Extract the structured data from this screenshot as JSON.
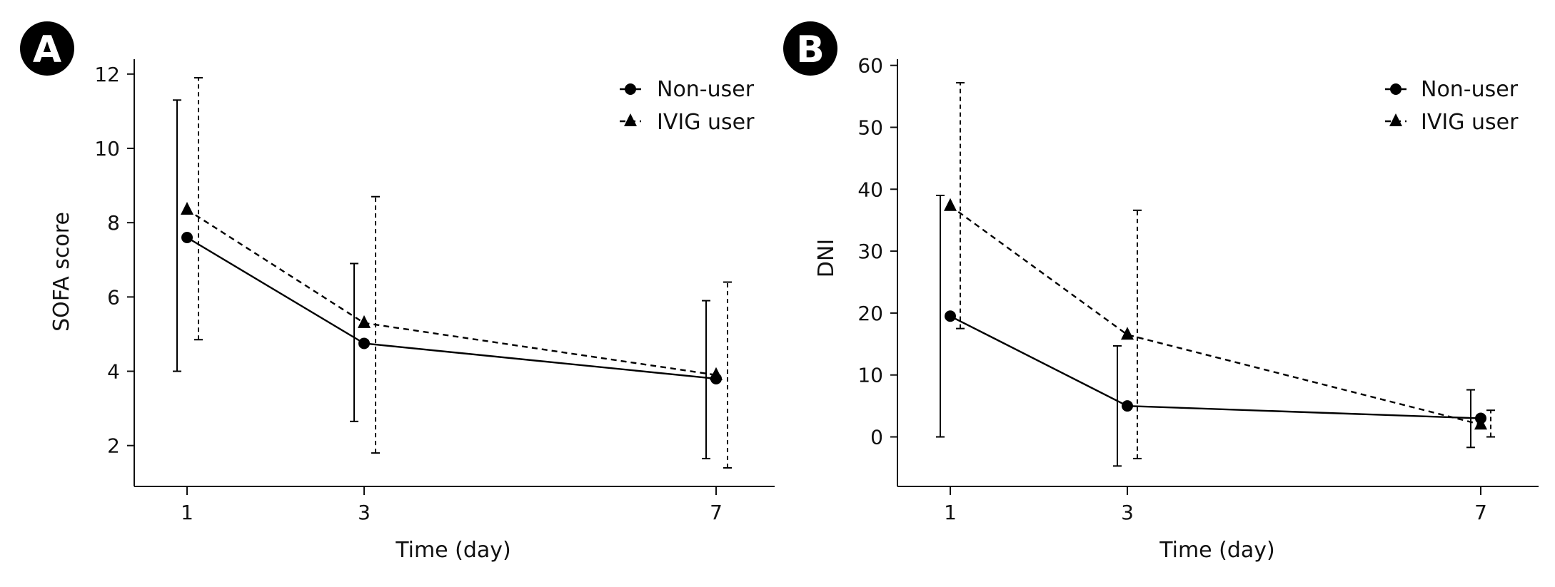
{
  "chart_data": [
    {
      "type": "line",
      "panel": "A",
      "title": "",
      "xlabel": "Time (day)",
      "ylabel": "SOFA score",
      "x": [
        1,
        3,
        7
      ],
      "xticks": [
        "1",
        "3",
        "7"
      ],
      "ylim": [
        0.9,
        12.4
      ],
      "yticks": [
        "2",
        "4",
        "6",
        "8",
        "10",
        "12"
      ],
      "legend_position": "top-right",
      "series": [
        {
          "name": "Non-user",
          "marker": "circle",
          "line": "solid",
          "values": [
            7.6,
            4.75,
            3.8
          ],
          "err_low": [
            4.0,
            2.65,
            1.65
          ],
          "err_high": [
            11.3,
            6.9,
            5.9
          ]
        },
        {
          "name": "IVIG user",
          "marker": "triangle",
          "line": "dashed",
          "values": [
            8.35,
            5.3,
            3.9
          ],
          "err_low": [
            4.85,
            1.8,
            1.4
          ],
          "err_high": [
            11.9,
            8.7,
            6.4
          ]
        }
      ]
    },
    {
      "type": "line",
      "panel": "B",
      "title": "",
      "xlabel": "Time (day)",
      "ylabel": "DNI",
      "x": [
        1,
        3,
        7
      ],
      "xticks": [
        "1",
        "3",
        "7"
      ],
      "ylim": [
        -8,
        61
      ],
      "yticks": [
        "0",
        "10",
        "20",
        "30",
        "40",
        "50",
        "60"
      ],
      "legend_position": "top-right",
      "series": [
        {
          "name": "Non-user",
          "marker": "circle",
          "line": "solid",
          "values": [
            19.5,
            5.0,
            3.0
          ],
          "err_low": [
            0,
            -4.7,
            -1.7
          ],
          "err_high": [
            39.0,
            14.7,
            7.6
          ]
        },
        {
          "name": "IVIG user",
          "marker": "triangle",
          "line": "dashed",
          "values": [
            37.3,
            16.5,
            2.0
          ],
          "err_low": [
            17.5,
            -3.5,
            0
          ],
          "err_high": [
            57.2,
            36.6,
            4.3
          ]
        }
      ]
    }
  ]
}
